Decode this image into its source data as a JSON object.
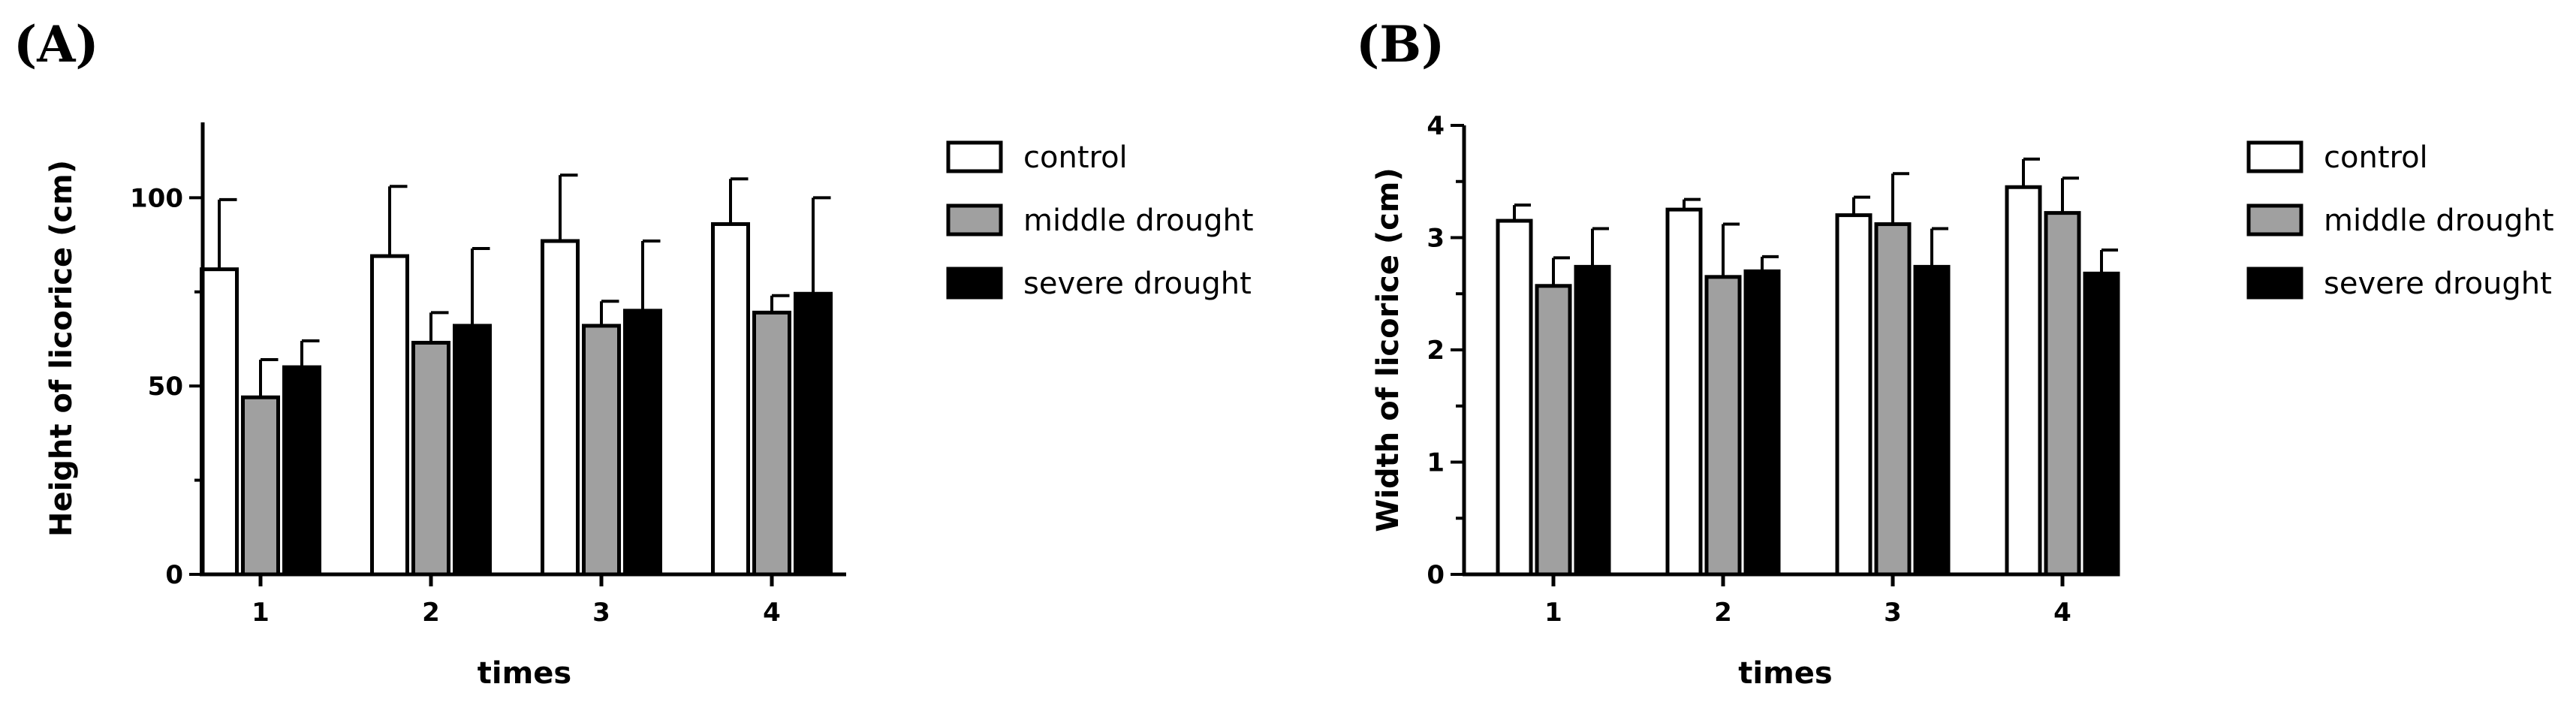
{
  "panels": [
    {
      "label": "(A)",
      "chart_data": {
        "type": "bar",
        "categories": [
          "1",
          "2",
          "3",
          "4"
        ],
        "xlabel": "times",
        "ylabel": "Height of licorice (cm)",
        "ylim": [
          0,
          120
        ],
        "yticks": [
          0,
          50,
          100
        ],
        "legend_position": "right",
        "series": [
          {
            "name": "control",
            "color": "#ffffff",
            "values": [
              81,
              84.5,
              88.5,
              93
            ],
            "errors": [
              18.5,
              18.5,
              17.5,
              12
            ]
          },
          {
            "name": "middle drought",
            "color": "#a0a0a0",
            "values": [
              47,
              61.5,
              66,
              69.5
            ],
            "errors": [
              10,
              8,
              6.5,
              4.5
            ]
          },
          {
            "name": "severe drought",
            "color": "#000000",
            "values": [
              55,
              66,
              70,
              74.5
            ],
            "errors": [
              7,
              20.5,
              18.5,
              25.5
            ]
          }
        ]
      }
    },
    {
      "label": "(B)",
      "chart_data": {
        "type": "bar",
        "categories": [
          "1",
          "2",
          "3",
          "4"
        ],
        "xlabel": "times",
        "ylabel": "Width of licorice (cm)",
        "ylim": [
          0,
          4
        ],
        "yticks": [
          0,
          1,
          2,
          3,
          4
        ],
        "legend_position": "right",
        "series": [
          {
            "name": "control",
            "color": "#ffffff",
            "values": [
              3.15,
              3.25,
              3.2,
              3.45
            ],
            "errors": [
              0.14,
              0.09,
              0.16,
              0.25
            ]
          },
          {
            "name": "middle drought",
            "color": "#a0a0a0",
            "values": [
              2.57,
              2.65,
              3.12,
              3.22
            ],
            "errors": [
              0.25,
              0.47,
              0.45,
              0.31
            ]
          },
          {
            "name": "severe drought",
            "color": "#000000",
            "values": [
              2.74,
              2.7,
              2.74,
              2.68
            ],
            "errors": [
              0.34,
              0.13,
              0.34,
              0.21
            ]
          }
        ]
      }
    }
  ]
}
